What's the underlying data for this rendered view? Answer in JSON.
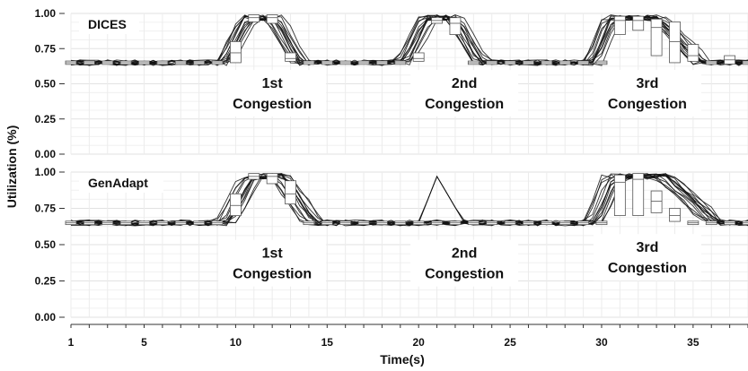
{
  "chart_data": {
    "type": "line",
    "xlabel": "Time(s)",
    "ylabel": "Utilization (%)",
    "x_ticks": [
      1,
      5,
      10,
      15,
      20,
      25,
      30,
      35
    ],
    "y_ticks": [
      "0.00",
      "0.25",
      "0.50",
      "0.75",
      "1.00"
    ],
    "xlim": [
      1,
      38
    ],
    "ylim": [
      0,
      1
    ],
    "grid": true,
    "panels": [
      {
        "label": "DICES",
        "annotations": [
          {
            "line1": "1st",
            "line2": "Congestion",
            "x": 12,
            "y": 0.42
          },
          {
            "line1": "2nd",
            "line2": "Congestion",
            "x": 22.5,
            "y": 0.42
          },
          {
            "line1": "3rd",
            "line2": "Congestion",
            "x": 32.5,
            "y": 0.42
          }
        ],
        "congestions": [
          {
            "start": 9.5,
            "peak_start": 10.7,
            "peak_end": 12.2,
            "end": 13.6
          },
          {
            "start": 19.3,
            "peak_start": 20.5,
            "peak_end": 22.1,
            "end": 23.4
          },
          {
            "start": 29.6,
            "peak_start": 30.6,
            "peak_end": 33.2,
            "end": 35.5
          }
        ],
        "baseline": 0.65,
        "peak": 0.97,
        "boxes": [
          {
            "x": 10,
            "low": 0.65,
            "high": 0.8,
            "med": 0.72
          },
          {
            "x": 11,
            "low": 0.94,
            "high": 0.99,
            "med": 0.97
          },
          {
            "x": 12,
            "low": 0.93,
            "high": 0.99,
            "med": 0.97
          },
          {
            "x": 13,
            "low": 0.66,
            "high": 0.72,
            "med": 0.68
          },
          {
            "x": 20,
            "low": 0.66,
            "high": 0.72,
            "med": 0.68
          },
          {
            "x": 21,
            "low": 0.93,
            "high": 0.97,
            "med": 0.95
          },
          {
            "x": 22,
            "low": 0.85,
            "high": 0.97,
            "med": 0.93
          },
          {
            "x": 31,
            "low": 0.85,
            "high": 0.98,
            "med": 0.95
          },
          {
            "x": 32,
            "low": 0.88,
            "high": 0.98,
            "med": 0.95
          },
          {
            "x": 33,
            "low": 0.7,
            "high": 0.96,
            "med": 0.9
          },
          {
            "x": 34,
            "low": 0.65,
            "high": 0.94,
            "med": 0.8
          },
          {
            "x": 35,
            "low": 0.66,
            "high": 0.78,
            "med": 0.7
          },
          {
            "x": 37,
            "low": 0.64,
            "high": 0.7,
            "med": 0.67
          }
        ]
      },
      {
        "label": "GenAdapt",
        "annotations": [
          {
            "line1": "1st",
            "line2": "Congestion",
            "x": 12,
            "y": 0.36
          },
          {
            "line1": "2nd",
            "line2": "Congestion",
            "x": 22.5,
            "y": 0.36
          },
          {
            "line1": "3rd",
            "line2": "Congestion",
            "x": 32.5,
            "y": 0.4
          }
        ],
        "congestions": [
          {
            "start": 9.5,
            "peak_start": 10.8,
            "peak_end": 12.5,
            "end": 14.2
          },
          {
            "start": 29.6,
            "peak_start": 30.6,
            "peak_end": 33.5,
            "end": 36.2
          }
        ],
        "spike": {
          "start": 20.0,
          "peak": 21.0,
          "end": 22.5
        },
        "baseline": 0.65,
        "peak": 0.97,
        "boxes": [
          {
            "x": 10,
            "low": 0.7,
            "high": 0.85,
            "med": 0.77
          },
          {
            "x": 11,
            "low": 0.95,
            "high": 0.99,
            "med": 0.97
          },
          {
            "x": 12,
            "low": 0.92,
            "high": 0.99,
            "med": 0.97
          },
          {
            "x": 13,
            "low": 0.78,
            "high": 0.94,
            "med": 0.85
          },
          {
            "x": 31,
            "low": 0.7,
            "high": 0.98,
            "med": 0.93
          },
          {
            "x": 32,
            "low": 0.7,
            "high": 0.99,
            "med": 0.95
          },
          {
            "x": 33,
            "low": 0.72,
            "high": 0.87,
            "med": 0.8
          },
          {
            "x": 34,
            "low": 0.66,
            "high": 0.75,
            "med": 0.7
          }
        ]
      }
    ]
  }
}
